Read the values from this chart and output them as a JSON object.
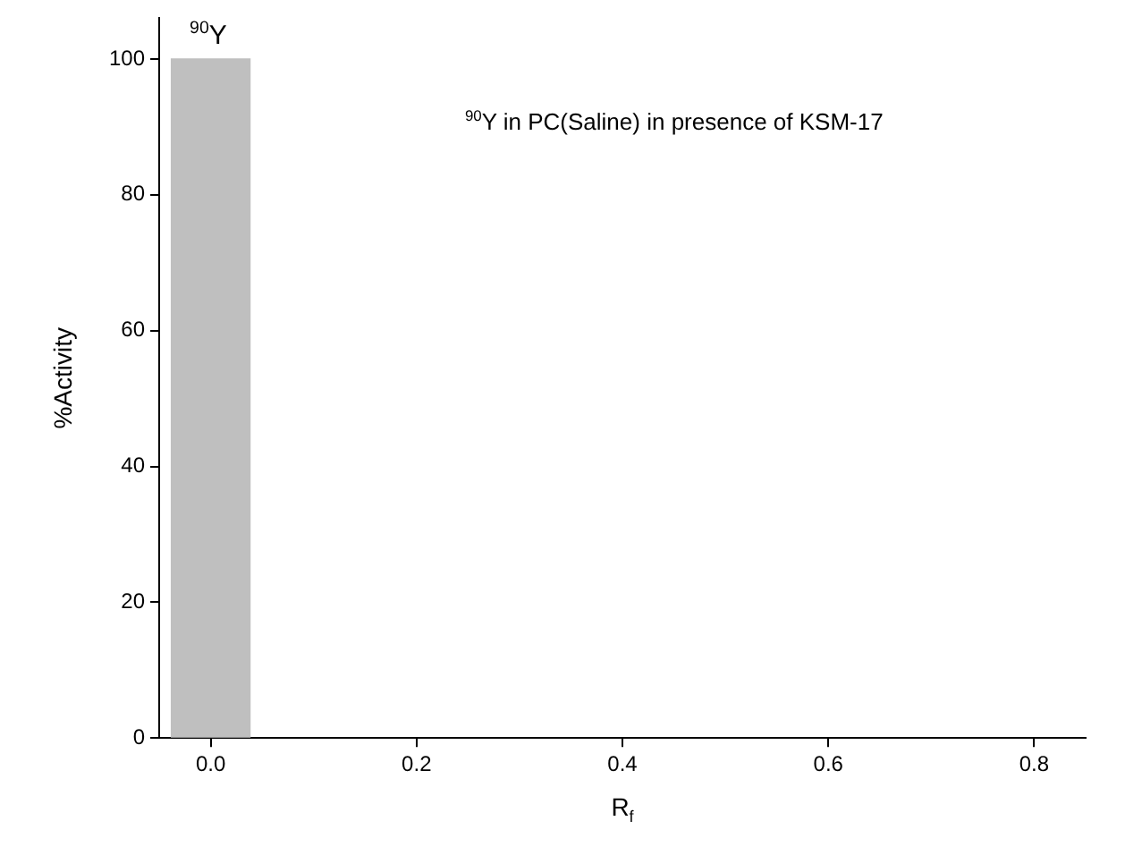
{
  "chart_data": {
    "type": "bar",
    "xlabel": "R$_{f}$",
    "ylabel": "%Activity",
    "x": [
      0
    ],
    "values": [
      100
    ],
    "color": "#bfbfbf",
    "xlim": [
      -0.05,
      0.85
    ],
    "xticks": [
      {
        "value": 0,
        "label": "0.0"
      },
      0.2,
      0.4,
      0.6,
      0.8
    ],
    "ylim": [
      0,
      106
    ],
    "yticks": [
      0,
      20,
      40,
      60,
      80,
      100
    ],
    "annotations": [
      "$^{90}$Y",
      "$^{90}$Y in PC(Saline) in presence of KSM-17"
    ],
    "grid": false,
    "legend": false
  }
}
